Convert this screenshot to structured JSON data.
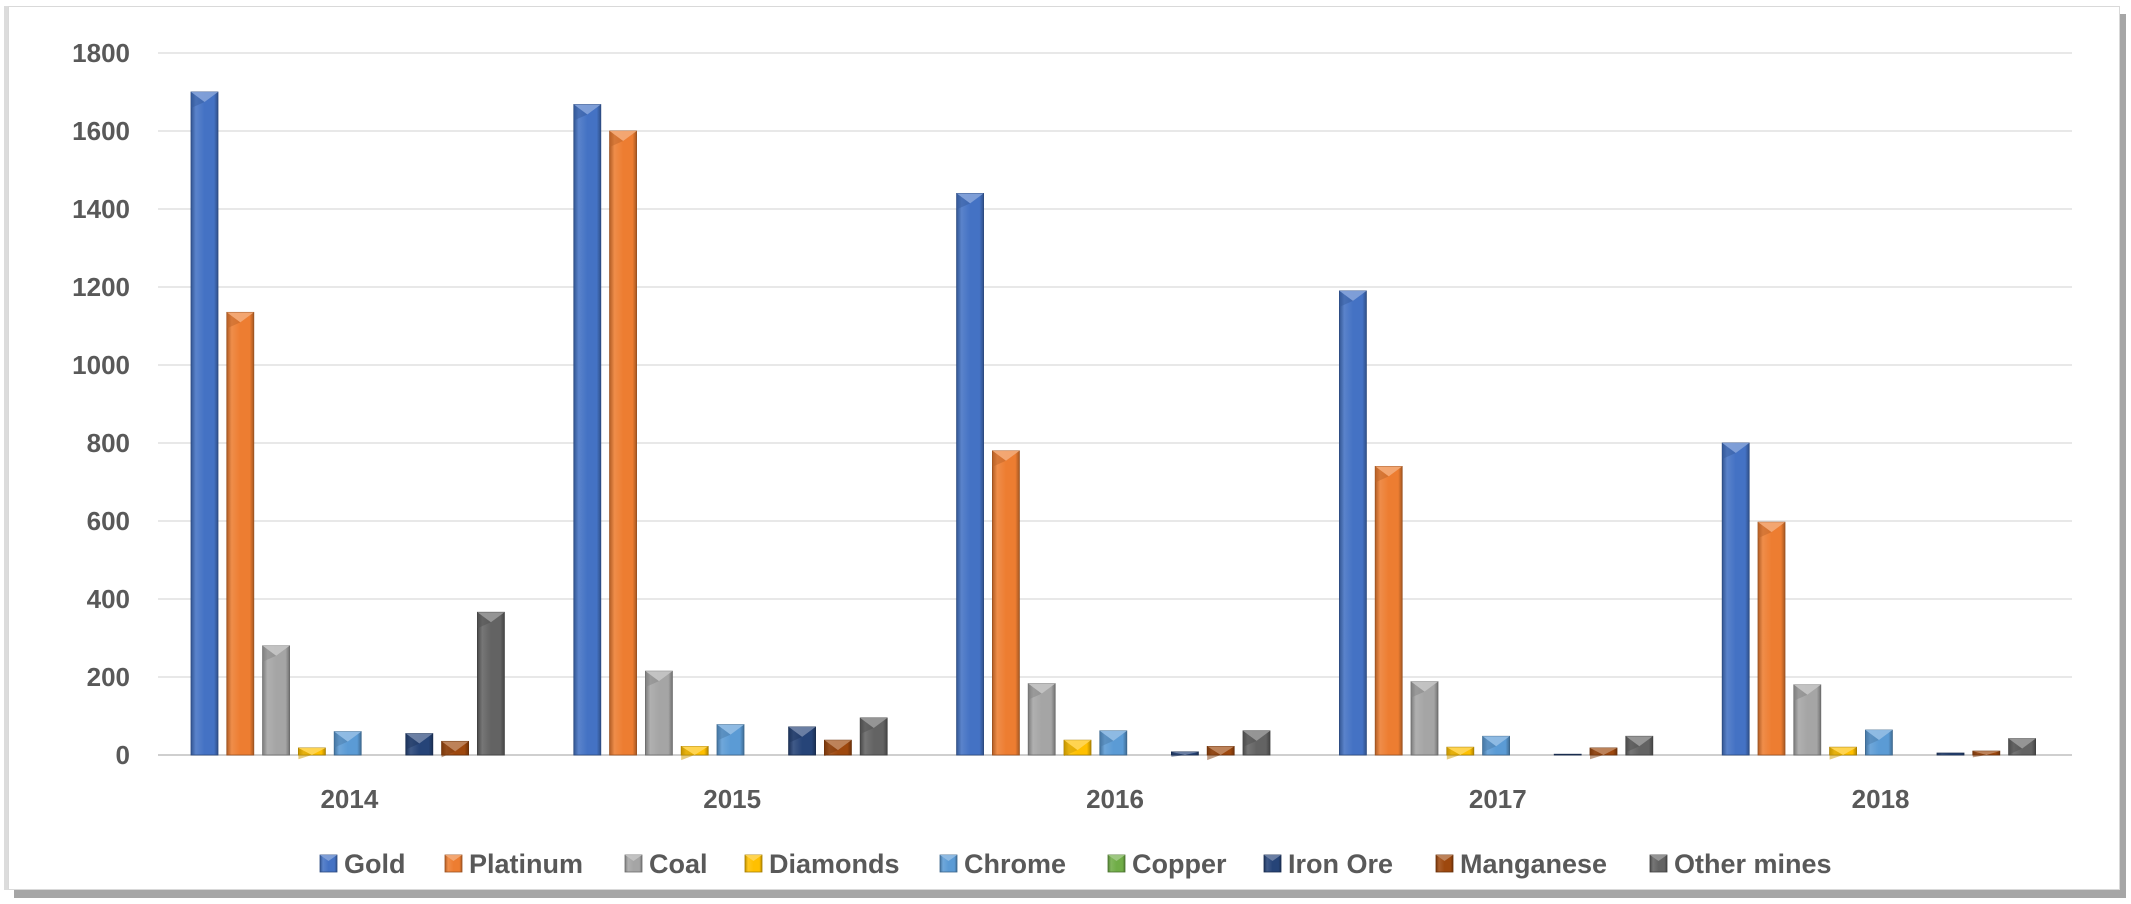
{
  "chart_data": {
    "type": "bar",
    "title": "",
    "xlabel": "",
    "ylabel": "",
    "categories": [
      "2014",
      "2015",
      "2016",
      "2017",
      "2018"
    ],
    "ylim": [
      0,
      1800
    ],
    "yticks": [
      0,
      200,
      400,
      600,
      800,
      1000,
      1200,
      1400,
      1600,
      1800
    ],
    "grid": true,
    "legend_position": "bottom",
    "series": [
      {
        "name": "Gold",
        "color": "#4472C4",
        "values": [
          1700,
          1668,
          1440,
          1190,
          800
        ]
      },
      {
        "name": "Platinum",
        "color": "#ED7D31",
        "values": [
          1135,
          1600,
          780,
          740,
          597
        ]
      },
      {
        "name": "Coal",
        "color": "#A5A5A5",
        "values": [
          280,
          215,
          183,
          188,
          180
        ]
      },
      {
        "name": "Diamonds",
        "color": "#FFC000",
        "values": [
          18,
          22,
          38,
          20,
          20
        ]
      },
      {
        "name": "Chrome",
        "color": "#5B9BD5",
        "values": [
          60,
          78,
          62,
          48,
          64
        ]
      },
      {
        "name": "Copper",
        "color": "#70AD47",
        "values": [
          0,
          0,
          0,
          0,
          0
        ]
      },
      {
        "name": "Iron Ore",
        "color": "#264478",
        "values": [
          55,
          72,
          8,
          2,
          5
        ]
      },
      {
        "name": "Manganese",
        "color": "#9E480E",
        "values": [
          35,
          38,
          22,
          18,
          10
        ]
      },
      {
        "name": "Other mines",
        "color": "#636363",
        "values": [
          366,
          95,
          62,
          48,
          42
        ]
      }
    ]
  }
}
